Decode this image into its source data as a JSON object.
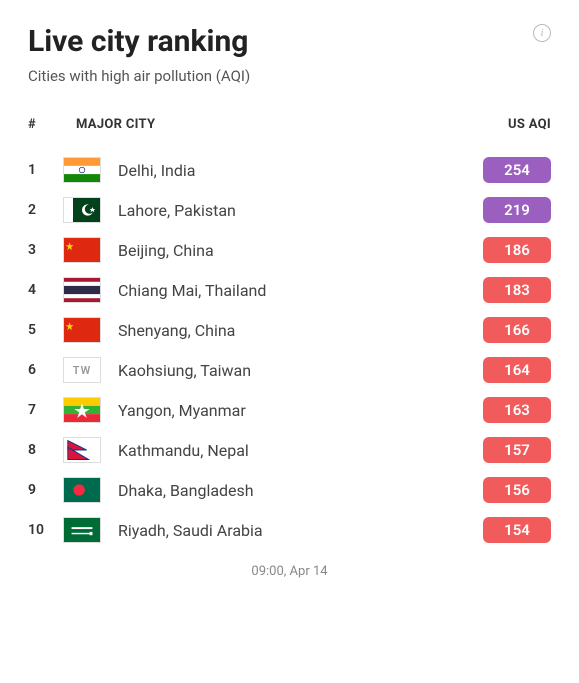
{
  "header": {
    "title": "Live city ranking",
    "subtitle": "Cities with high air pollution (AQI)"
  },
  "columns": {
    "rank": "#",
    "city": "MAJOR CITY",
    "aqi": "US AQI"
  },
  "rows": [
    {
      "rank": "1",
      "country_code": "IN",
      "city": "Delhi, India",
      "aqi": "254",
      "badge_color": "#9b5fc0"
    },
    {
      "rank": "2",
      "country_code": "PK",
      "city": "Lahore, Pakistan",
      "aqi": "219",
      "badge_color": "#9b5fc0"
    },
    {
      "rank": "3",
      "country_code": "CN",
      "city": "Beijing, China",
      "aqi": "186",
      "badge_color": "#f15b5b"
    },
    {
      "rank": "4",
      "country_code": "TH",
      "city": "Chiang Mai, Thailand",
      "aqi": "183",
      "badge_color": "#f15b5b"
    },
    {
      "rank": "5",
      "country_code": "CN",
      "city": "Shenyang, China",
      "aqi": "166",
      "badge_color": "#f15b5b"
    },
    {
      "rank": "6",
      "country_code": "TW",
      "city": "Kaohsiung, Taiwan",
      "aqi": "164",
      "badge_color": "#f15b5b"
    },
    {
      "rank": "7",
      "country_code": "MM",
      "city": "Yangon, Myanmar",
      "aqi": "163",
      "badge_color": "#f15b5b"
    },
    {
      "rank": "8",
      "country_code": "NP",
      "city": "Kathmandu, Nepal",
      "aqi": "157",
      "badge_color": "#f15b5b"
    },
    {
      "rank": "9",
      "country_code": "BD",
      "city": "Dhaka, Bangladesh",
      "aqi": "156",
      "badge_color": "#f15b5b"
    },
    {
      "rank": "10",
      "country_code": "SA",
      "city": "Riyadh, Saudi Arabia",
      "aqi": "154",
      "badge_color": "#f15b5b"
    }
  ],
  "timestamp": "09:00, Apr 14"
}
